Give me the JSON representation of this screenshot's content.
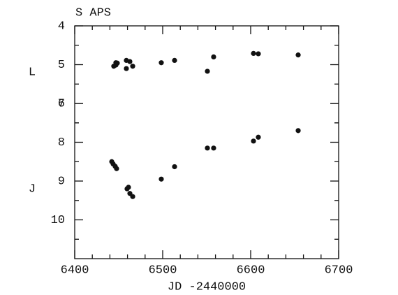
{
  "chart_data": {
    "type": "scatter",
    "title": "S APS",
    "x_label": "JD -2440000",
    "annotations": [
      "L",
      "J"
    ],
    "xlim": [
      6400,
      6700
    ],
    "xticks": [
      6400,
      6500,
      6600,
      6700
    ],
    "ylim": [
      4,
      10
    ],
    "yticks": [
      4,
      5,
      6
    ],
    "y_inverted": true,
    "y2lim": [
      5,
      11
    ],
    "y2ticks": [
      7,
      8,
      9,
      10
    ],
    "series": [
      {
        "name": "L",
        "color": "#111111",
        "axis": "y",
        "x": [
          6444.4,
          6446.8,
          6446.8,
          6448.4,
          6458.7,
          6458.7,
          6462.7,
          6465.9,
          6498.4,
          6513.5,
          6550.8,
          6557.9,
          6603.2,
          6608.7,
          6654
        ],
        "values": [
          5.04,
          5.01,
          4.95,
          4.96,
          5.1,
          4.89,
          4.92,
          5.04,
          4.95,
          4.89,
          5.17,
          4.8,
          4.71,
          4.72,
          4.75
        ]
      },
      {
        "name": "J",
        "color": "#111111",
        "axis": "y2",
        "x": [
          6442.1,
          6443.7,
          6446,
          6447.6,
          6459.5,
          6461.1,
          6462.7,
          6465.9,
          6498.4,
          6513.5,
          6550.8,
          6557.9,
          6603.2,
          6608.7,
          6654
        ],
        "values": [
          8.5,
          8.56,
          8.62,
          8.68,
          9.2,
          9.16,
          9.32,
          9.4,
          8.95,
          8.63,
          8.15,
          8.15,
          7.97,
          7.87,
          7.7
        ]
      }
    ]
  }
}
